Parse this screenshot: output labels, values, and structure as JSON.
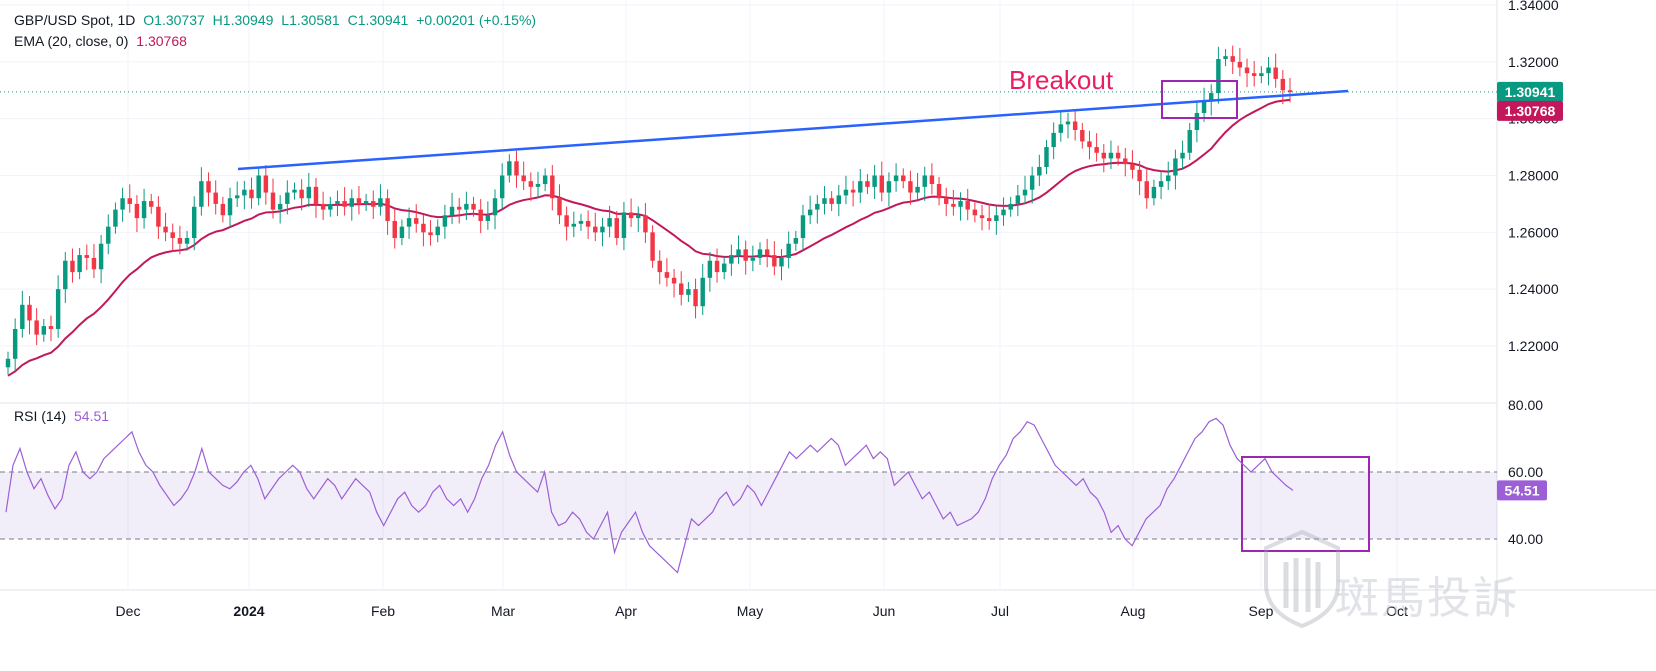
{
  "legend": {
    "symbol": "GBP/USD Spot, 1D",
    "open": "O1.30737",
    "high": "H1.30949",
    "low": "L1.30581",
    "close": "C1.30941",
    "change": "+0.00201 (+0.15%)",
    "ema_label": "EMA (20, close, 0)",
    "ema_value": "1.30768",
    "rsi_label": "RSI (14)",
    "rsi_value": "54.51"
  },
  "annotation": {
    "breakout": "Breakout"
  },
  "watermark": "斑馬投訴",
  "colors": {
    "up": "#089981",
    "down": "#f23645",
    "ema": "#c2185b",
    "trendline": "#2962ff",
    "rsi": "#9c5fd6",
    "box": "#9c27b0"
  },
  "chart_data": [
    {
      "type": "candlestick",
      "title": "GBP/USD Spot, 1D",
      "ylim": [
        1.21,
        1.34
      ],
      "y_ticks": [
        "1.34000",
        "1.32000",
        "1.30000",
        "1.28000",
        "1.26000",
        "1.24000",
        "1.22000"
      ],
      "x_ticks": [
        "Dec",
        "2024",
        "Feb",
        "Mar",
        "Apr",
        "May",
        "Jun",
        "Jul",
        "Aug",
        "Sep",
        "Oct"
      ],
      "last_price": "1.30941",
      "ema_last": "1.30768",
      "close_series": [
        1.2155,
        1.226,
        1.2345,
        1.229,
        1.224,
        1.227,
        1.226,
        1.24,
        1.25,
        1.246,
        1.252,
        1.251,
        1.247,
        1.256,
        1.262,
        1.268,
        1.272,
        1.27,
        1.265,
        1.271,
        1.269,
        1.262,
        1.26,
        1.258,
        1.256,
        1.258,
        1.269,
        1.278,
        1.274,
        1.27,
        1.266,
        1.272,
        1.273,
        1.275,
        1.272,
        1.28,
        1.274,
        1.268,
        1.27,
        1.274,
        1.275,
        1.272,
        1.276,
        1.27,
        1.268,
        1.27,
        1.271,
        1.269,
        1.272,
        1.27,
        1.271,
        1.269,
        1.272,
        1.264,
        1.258,
        1.262,
        1.265,
        1.263,
        1.26,
        1.259,
        1.262,
        1.266,
        1.269,
        1.268,
        1.27,
        1.268,
        1.264,
        1.266,
        1.272,
        1.28,
        1.285,
        1.28,
        1.278,
        1.276,
        1.277,
        1.28,
        1.272,
        1.266,
        1.262,
        1.263,
        1.264,
        1.262,
        1.26,
        1.262,
        1.265,
        1.258,
        1.267,
        1.265,
        1.266,
        1.26,
        1.25,
        1.246,
        1.244,
        1.242,
        1.238,
        1.24,
        1.234,
        1.244,
        1.25,
        1.246,
        1.249,
        1.252,
        1.254,
        1.25,
        1.251,
        1.254,
        1.252,
        1.248,
        1.251,
        1.256,
        1.258,
        1.266,
        1.268,
        1.27,
        1.272,
        1.27,
        1.273,
        1.275,
        1.274,
        1.278,
        1.276,
        1.28,
        1.274,
        1.278,
        1.28,
        1.278,
        1.274,
        1.276,
        1.28,
        1.277,
        1.272,
        1.27,
        1.269,
        1.271,
        1.268,
        1.266,
        1.265,
        1.264,
        1.266,
        1.268,
        1.27,
        1.273,
        1.275,
        1.28,
        1.283,
        1.29,
        1.295,
        1.298,
        1.299,
        1.296,
        1.292,
        1.29,
        1.288,
        1.286,
        1.288,
        1.286,
        1.284,
        1.282,
        1.278,
        1.272,
        1.276,
        1.278,
        1.28,
        1.286,
        1.288,
        1.296,
        1.302,
        1.306,
        1.309,
        1.321,
        1.322,
        1.32,
        1.318,
        1.316,
        1.315,
        1.316,
        1.318,
        1.314,
        1.31,
        1.3094
      ]
    },
    {
      "type": "line",
      "title": "RSI (14)",
      "ylim": [
        25,
        80
      ],
      "y_ticks": [
        "80.00",
        "60.00",
        "40.00"
      ],
      "band": [
        40,
        60
      ],
      "last_value": "54.51",
      "values": [
        48,
        62,
        67,
        60,
        55,
        58,
        53,
        49,
        52,
        62,
        66,
        60,
        58,
        60,
        64,
        66,
        68,
        70,
        72,
        66,
        62,
        60,
        56,
        53,
        50,
        52,
        55,
        60,
        67,
        60,
        58,
        56,
        55,
        57,
        60,
        62,
        58,
        52,
        55,
        58,
        60,
        62,
        60,
        55,
        52,
        55,
        58,
        56,
        52,
        55,
        58,
        56,
        54,
        48,
        44,
        48,
        52,
        54,
        50,
        48,
        50,
        54,
        56,
        52,
        50,
        52,
        48,
        52,
        58,
        62,
        68,
        72,
        65,
        60,
        58,
        56,
        54,
        60,
        48,
        44,
        45,
        48,
        46,
        42,
        40,
        44,
        48,
        36,
        42,
        45,
        48,
        42,
        38,
        36,
        34,
        32,
        30,
        38,
        46,
        44,
        46,
        48,
        52,
        54,
        50,
        52,
        56,
        54,
        50,
        54,
        58,
        62,
        66,
        64,
        66,
        68,
        66,
        68,
        70,
        68,
        62,
        64,
        66,
        68,
        64,
        66,
        64,
        56,
        58,
        60,
        56,
        52,
        54,
        50,
        46,
        48,
        44,
        45,
        46,
        48,
        52,
        58,
        62,
        65,
        70,
        72,
        75,
        74,
        70,
        66,
        62,
        60,
        58,
        56,
        58,
        54,
        52,
        48,
        42,
        44,
        40,
        38,
        42,
        46,
        48,
        50,
        55,
        58,
        62,
        66,
        70,
        72,
        75,
        76,
        74,
        68,
        64,
        62,
        60,
        62,
        64,
        60,
        58,
        56,
        54.51
      ]
    }
  ]
}
